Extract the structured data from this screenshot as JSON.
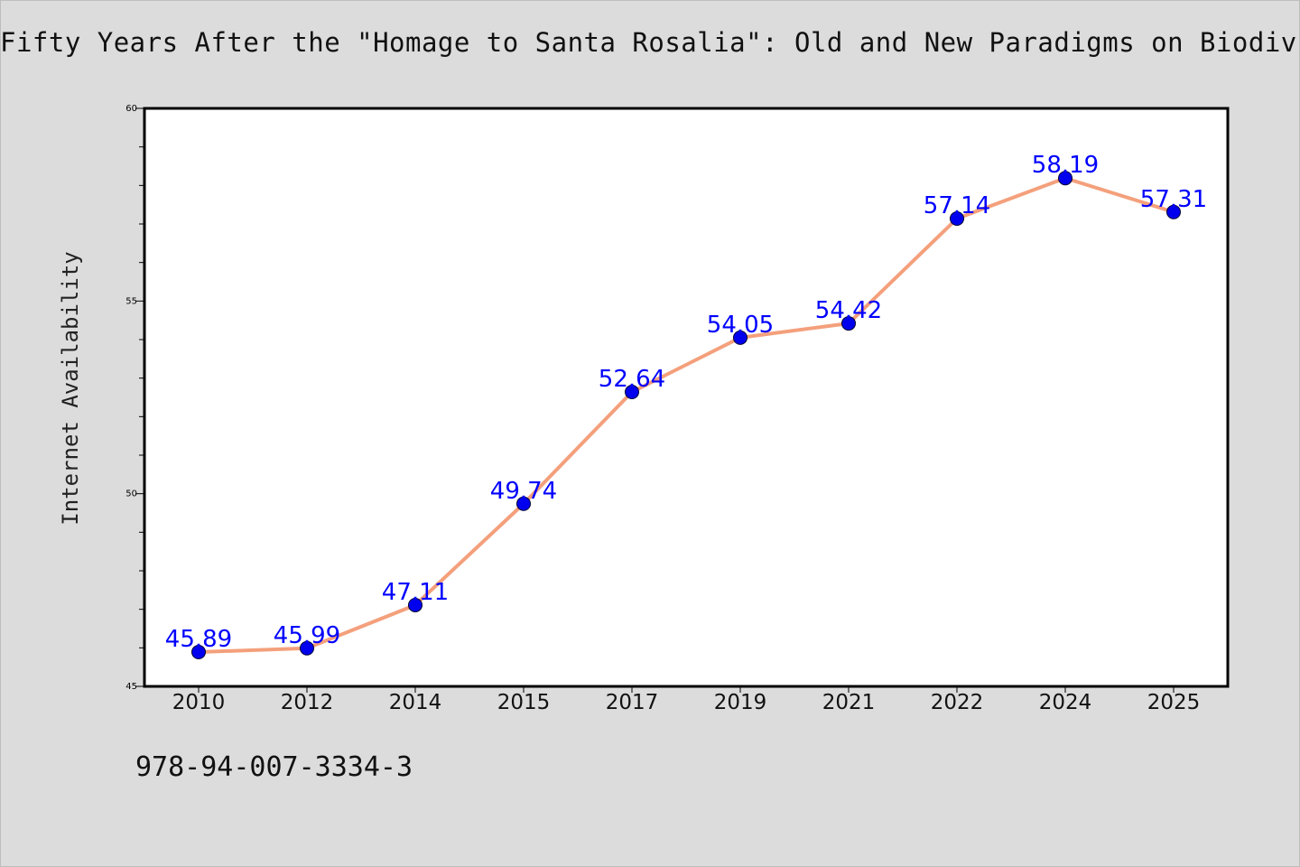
{
  "chart_data": {
    "type": "line",
    "title": "Fifty Years After the \"Homage to Santa Rosalia\": Old and New Paradigms on Biodiv",
    "xlabel": "",
    "ylabel": "Internet Availability",
    "categories": [
      "2010",
      "2012",
      "2014",
      "2015",
      "2017",
      "2019",
      "2021",
      "2022",
      "2024",
      "2025"
    ],
    "series": [
      {
        "values": [
          45.89,
          45.99,
          47.11,
          49.74,
          52.64,
          54.05,
          54.42,
          57.14,
          58.19,
          57.31
        ],
        "data_labels": [
          "45.89",
          "45.99",
          "47.11",
          "49.74",
          "52.64",
          "54.05",
          "54.42",
          "57.14",
          "58.19",
          "57.31"
        ],
        "line_color": "#f4a07c",
        "marker_color": "#0000ee"
      }
    ],
    "ylim": [
      45,
      60
    ],
    "yticks": [
      "45",
      "50",
      "55",
      "60"
    ],
    "label_color": "#0000ff",
    "grid": false,
    "legend": "none"
  },
  "footnote": "978-94-007-3334-3"
}
